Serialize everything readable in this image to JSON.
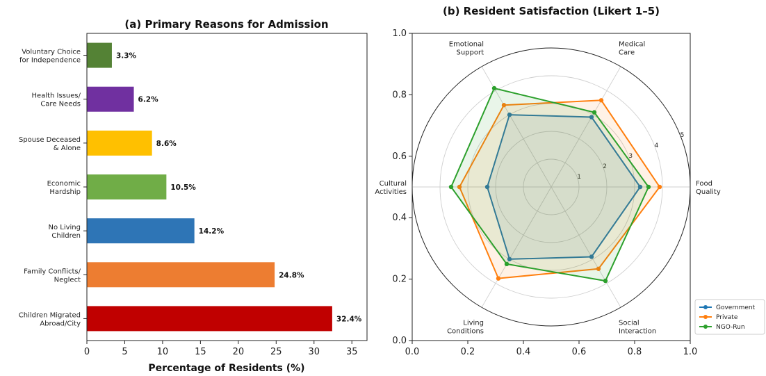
{
  "chart_data": [
    {
      "type": "bar",
      "orientation": "horizontal",
      "title": "(a) Primary Reasons for Admission",
      "xlabel": "Percentage of Residents (%)",
      "ylabel": "",
      "xlim": [
        0,
        37
      ],
      "xticks": [
        0,
        5,
        10,
        15,
        20,
        25,
        30,
        35
      ],
      "categories": [
        [
          "Children Migrated",
          "Abroad/City"
        ],
        [
          "Family Conflicts/",
          "Neglect"
        ],
        [
          "No Living",
          "Children"
        ],
        [
          "Economic",
          "Hardship"
        ],
        [
          "Spouse Deceased",
          "& Alone"
        ],
        [
          "Health Issues/",
          "Care Needs"
        ],
        [
          "Voluntary Choice",
          "for Independence"
        ]
      ],
      "values": [
        32.4,
        24.8,
        14.2,
        10.5,
        8.6,
        6.2,
        3.3
      ],
      "value_labels": [
        "32.4%",
        "24.8%",
        "14.2%",
        "10.5%",
        "8.6%",
        "6.2%",
        "3.3%"
      ],
      "colors": [
        "#c00000",
        "#ed7d31",
        "#2e75b6",
        "#70ad47",
        "#ffc000",
        "#7030a0",
        "#548235"
      ]
    },
    {
      "type": "radar",
      "title": "(b) Resident Satisfaction (Likert 1–5)",
      "cartesian_frame": {
        "xlim": [
          0,
          1
        ],
        "ylim": [
          0,
          1
        ],
        "xticks": [
          "0.0",
          "0.2",
          "0.4",
          "0.6",
          "0.8",
          "1.0"
        ],
        "yticks": [
          "0.0",
          "0.2",
          "0.4",
          "0.6",
          "0.8",
          "1.0"
        ]
      },
      "axes": [
        [
          "Food",
          "Quality"
        ],
        [
          "Medical",
          "Care"
        ],
        [
          "Emotional",
          "Support"
        ],
        [
          "Cultural",
          "Activities"
        ],
        [
          "Living",
          "Conditions"
        ],
        [
          "Social",
          "Interaction"
        ]
      ],
      "rmax": 5,
      "radial_ticks": [
        "1",
        "2",
        "3",
        "4",
        "5"
      ],
      "series": [
        {
          "name": "Government",
          "color": "#1f77b4",
          "values": [
            3.2,
            2.9,
            3.0,
            2.3,
            3.0,
            2.9
          ]
        },
        {
          "name": "Private",
          "color": "#ff7f0e",
          "values": [
            3.9,
            3.6,
            3.4,
            3.3,
            3.8,
            3.4
          ]
        },
        {
          "name": "NGO-Run",
          "color": "#2ca02c",
          "values": [
            3.5,
            3.1,
            4.1,
            3.6,
            3.2,
            3.9
          ]
        }
      ],
      "legend_position": "bottom-right"
    }
  ]
}
